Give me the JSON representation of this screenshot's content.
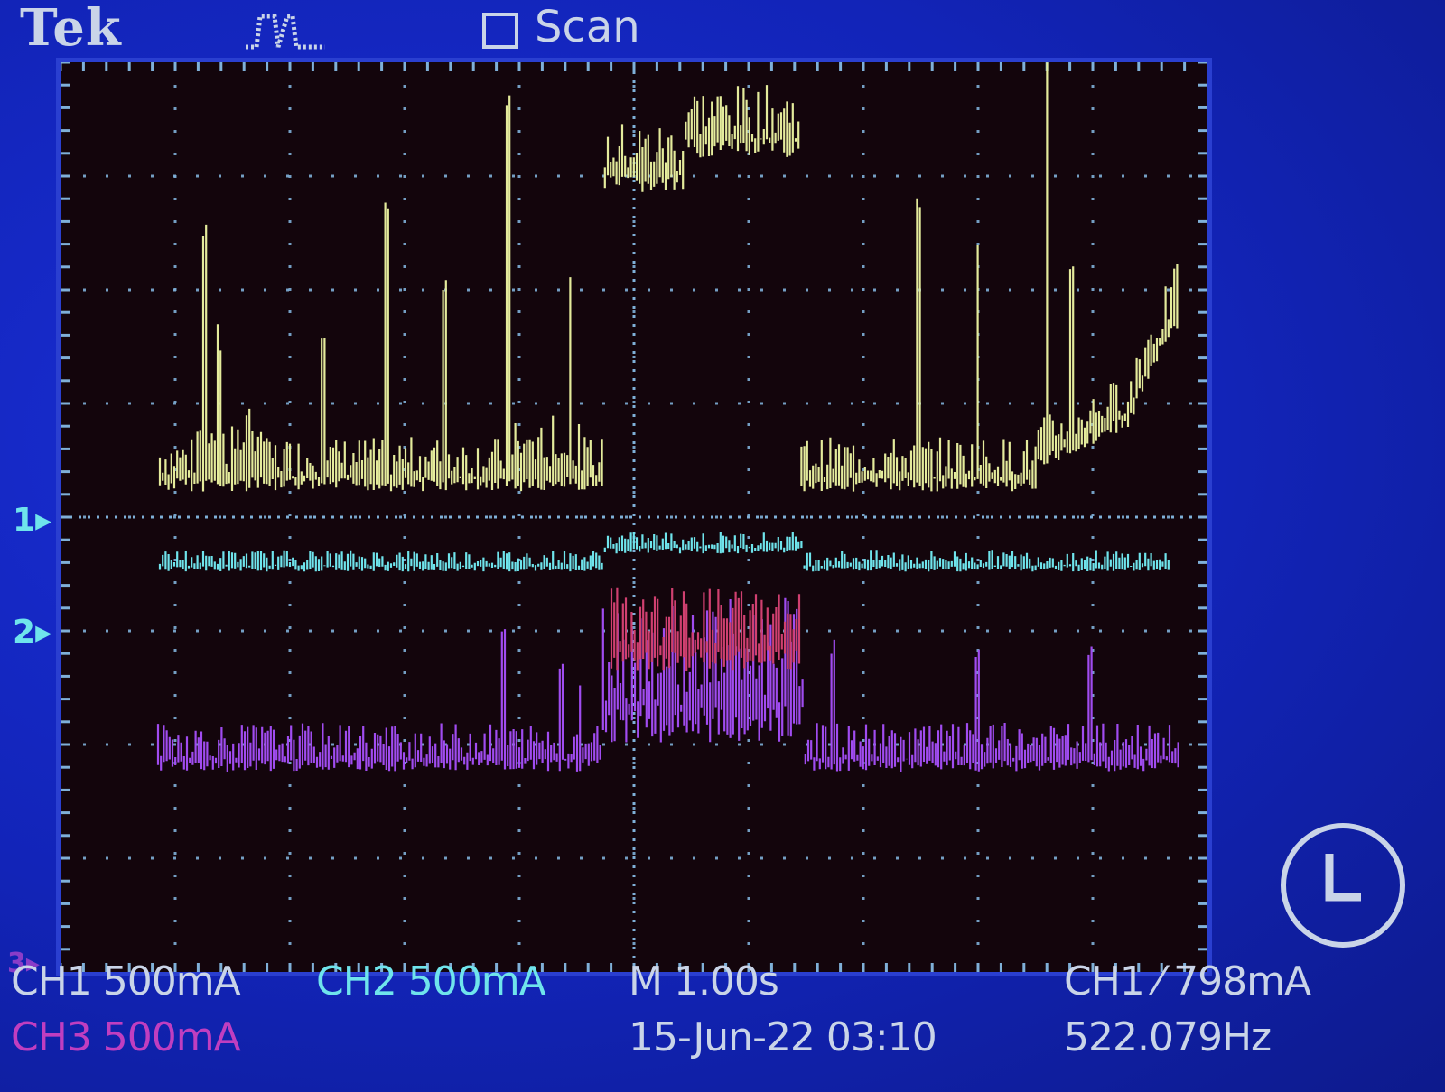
{
  "header": {
    "brand": "Tek",
    "trigger_icon": "pulse-trigger-icon",
    "scan_label": "Scan"
  },
  "markers": {
    "ch1": "1",
    "ch2": "2",
    "ch3": "3"
  },
  "status_bar": {
    "ch1_scale": "CH1  500mA",
    "ch2_scale": "CH2  500mA",
    "ch3_scale": "CH3  500mA",
    "timebase": "M 1.00s",
    "date_time": "15-Jun-22 03:10",
    "trigger": "CH1 ⁄ 798mA",
    "frequency": "522.079Hz"
  },
  "colors": {
    "ch1": "#e4eb9c",
    "ch2": "#6fe4ec",
    "ch3": "#a04cf0",
    "grid": "#7fb0d8",
    "ui_text": "#c9d4e8",
    "ch3_label": "#c03ec0"
  },
  "clock_icon": "clock-icon"
}
